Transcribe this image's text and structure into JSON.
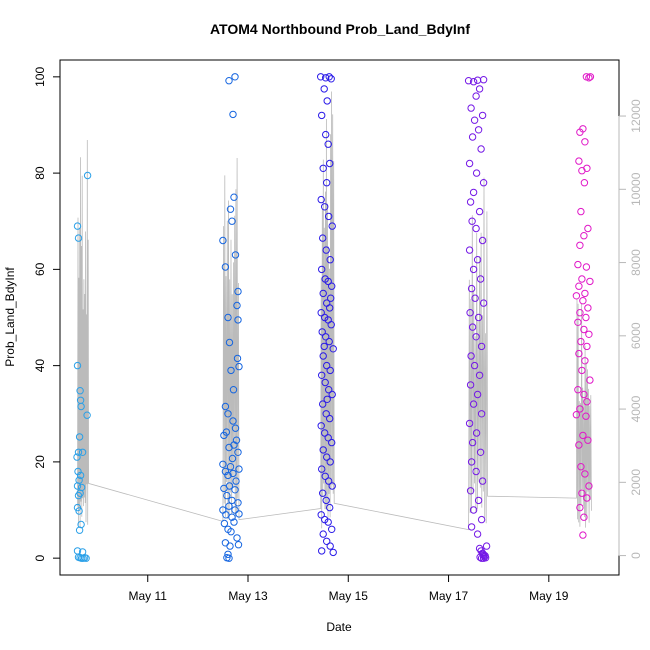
{
  "chart_data": {
    "type": "scatter",
    "title": "ATOM4 Northbound Prob_Land_BdyInf",
    "xlabel": "Date",
    "ylabel": "Prob_Land_BdyInf",
    "x_ticks": [
      "May 11",
      "May 13",
      "May 15",
      "May 17",
      "May 19"
    ],
    "x_tick_positions": [
      11,
      13,
      15,
      17,
      19
    ],
    "xlim": [
      9.25,
      20.4
    ],
    "ylim": [
      -3.5,
      103.5
    ],
    "y_ticks": [
      0,
      20,
      40,
      60,
      80,
      100
    ],
    "secondary_axis": {
      "side": "right",
      "ylim": [
        -530,
        13530
      ],
      "ticks": [
        0,
        2000,
        4000,
        6000,
        8000,
        10000,
        12000
      ],
      "color": "#b8b8b8"
    },
    "grid": false,
    "legend": "none",
    "series": [
      {
        "color": "#2aa0e8",
        "points": [
          [
            9.6,
            69
          ],
          [
            9.62,
            66.5
          ],
          [
            9.6,
            40
          ],
          [
            9.65,
            34.8
          ],
          [
            9.66,
            32.8
          ],
          [
            9.67,
            31.5
          ],
          [
            9.64,
            25.2
          ],
          [
            9.62,
            22
          ],
          [
            9.7,
            22
          ],
          [
            9.59,
            21
          ],
          [
            9.61,
            18
          ],
          [
            9.63,
            16.2
          ],
          [
            9.66,
            17.2
          ],
          [
            9.6,
            15
          ],
          [
            9.68,
            14.7
          ],
          [
            9.62,
            13
          ],
          [
            9.65,
            13.5
          ],
          [
            9.6,
            10.5
          ],
          [
            9.63,
            9.8
          ],
          [
            9.67,
            7
          ],
          [
            9.64,
            5.8
          ],
          [
            9.6,
            1.5
          ],
          [
            9.7,
            1.3
          ],
          [
            9.62,
            0.2
          ],
          [
            9.65,
            0.1
          ],
          [
            9.68,
            0
          ],
          [
            9.71,
            0
          ],
          [
            9.74,
            0.1
          ],
          [
            9.77,
            0
          ],
          [
            9.8,
            79.5
          ],
          [
            9.79,
            29.7
          ]
        ]
      },
      {
        "color": "#1565e0",
        "points": [
          [
            12.5,
            66
          ],
          [
            12.55,
            60.5
          ],
          [
            12.62,
            99.2
          ],
          [
            12.74,
            100
          ],
          [
            12.7,
            92.2
          ],
          [
            12.8,
            55.4
          ],
          [
            12.78,
            52.5
          ],
          [
            12.65,
            72.5
          ],
          [
            12.72,
            75
          ],
          [
            12.68,
            70
          ],
          [
            12.75,
            63
          ],
          [
            12.6,
            50
          ],
          [
            12.63,
            44.8
          ],
          [
            12.8,
            49.5
          ],
          [
            12.79,
            41.5
          ],
          [
            12.82,
            39.8
          ],
          [
            12.66,
            39
          ],
          [
            12.55,
            31.5
          ],
          [
            12.6,
            30
          ],
          [
            12.7,
            28.5
          ],
          [
            12.75,
            27
          ],
          [
            12.52,
            25.5
          ],
          [
            12.62,
            23
          ],
          [
            12.72,
            23.5
          ],
          [
            12.8,
            22
          ],
          [
            12.5,
            19.5
          ],
          [
            12.55,
            18
          ],
          [
            12.6,
            17.2
          ],
          [
            12.65,
            19
          ],
          [
            12.7,
            17.6
          ],
          [
            12.76,
            16
          ],
          [
            12.82,
            18.5
          ],
          [
            12.52,
            14.5
          ],
          [
            12.58,
            13
          ],
          [
            12.63,
            15
          ],
          [
            12.68,
            12
          ],
          [
            12.74,
            14.2
          ],
          [
            12.8,
            11.5
          ],
          [
            12.5,
            10
          ],
          [
            12.56,
            9
          ],
          [
            12.62,
            10.8
          ],
          [
            12.68,
            8.5
          ],
          [
            12.74,
            10
          ],
          [
            12.82,
            9.2
          ],
          [
            12.53,
            7.2
          ],
          [
            12.6,
            6
          ],
          [
            12.66,
            5.5
          ],
          [
            12.72,
            7.5
          ],
          [
            12.78,
            4.2
          ],
          [
            12.55,
            3.2
          ],
          [
            12.64,
            2.5
          ],
          [
            12.6,
            0.8
          ],
          [
            12.58,
            0.1
          ],
          [
            12.62,
            0
          ],
          [
            12.71,
            35
          ],
          [
            12.77,
            24.5
          ],
          [
            12.57,
            26.2
          ],
          [
            12.69,
            20.7
          ],
          [
            12.81,
            2.8
          ]
        ]
      },
      {
        "color": "#2a1ae8",
        "points": [
          [
            14.45,
            100
          ],
          [
            14.55,
            99.8
          ],
          [
            14.62,
            100
          ],
          [
            14.66,
            99.6
          ],
          [
            14.52,
            97.5
          ],
          [
            14.58,
            95
          ],
          [
            14.47,
            92
          ],
          [
            14.55,
            88
          ],
          [
            14.6,
            86
          ],
          [
            14.5,
            81
          ],
          [
            14.63,
            82
          ],
          [
            14.57,
            78
          ],
          [
            14.46,
            74.5
          ],
          [
            14.53,
            73
          ],
          [
            14.61,
            71
          ],
          [
            14.68,
            69
          ],
          [
            14.49,
            66.5
          ],
          [
            14.56,
            64
          ],
          [
            14.64,
            62
          ],
          [
            14.47,
            60
          ],
          [
            14.54,
            58
          ],
          [
            14.6,
            57.5
          ],
          [
            14.67,
            56.5
          ],
          [
            14.5,
            55
          ],
          [
            14.57,
            53
          ],
          [
            14.63,
            52
          ],
          [
            14.46,
            51
          ],
          [
            14.53,
            50
          ],
          [
            14.6,
            49.5
          ],
          [
            14.66,
            48.5
          ],
          [
            14.48,
            47
          ],
          [
            14.55,
            46
          ],
          [
            14.62,
            45
          ],
          [
            14.7,
            43.5
          ],
          [
            14.5,
            42
          ],
          [
            14.57,
            40
          ],
          [
            14.64,
            39
          ],
          [
            14.47,
            38
          ],
          [
            14.54,
            36.5
          ],
          [
            14.61,
            35
          ],
          [
            14.68,
            34
          ],
          [
            14.49,
            32
          ],
          [
            14.56,
            30
          ],
          [
            14.63,
            29
          ],
          [
            14.46,
            27.5
          ],
          [
            14.53,
            26
          ],
          [
            14.6,
            25
          ],
          [
            14.67,
            24
          ],
          [
            14.5,
            22.5
          ],
          [
            14.57,
            21
          ],
          [
            14.64,
            20
          ],
          [
            14.47,
            18.5
          ],
          [
            14.54,
            17
          ],
          [
            14.61,
            16
          ],
          [
            14.68,
            15
          ],
          [
            14.49,
            13.5
          ],
          [
            14.56,
            12
          ],
          [
            14.63,
            10.5
          ],
          [
            14.46,
            9
          ],
          [
            14.53,
            8
          ],
          [
            14.6,
            7.5
          ],
          [
            14.67,
            6
          ],
          [
            14.5,
            5
          ],
          [
            14.57,
            3.5
          ],
          [
            14.64,
            2.5
          ],
          [
            14.47,
            1.5
          ],
          [
            14.7,
            1.2
          ],
          [
            14.65,
            54
          ],
          [
            14.52,
            44
          ],
          [
            14.58,
            33
          ]
        ]
      },
      {
        "color": "#7418e6",
        "points": [
          [
            17.4,
            99.2
          ],
          [
            17.5,
            99
          ],
          [
            17.58,
            99.3
          ],
          [
            17.7,
            99.4
          ],
          [
            17.62,
            97.5
          ],
          [
            17.55,
            96
          ],
          [
            17.45,
            93.5
          ],
          [
            17.52,
            91
          ],
          [
            17.68,
            92
          ],
          [
            17.6,
            89
          ],
          [
            17.48,
            87.5
          ],
          [
            17.65,
            85
          ],
          [
            17.42,
            82
          ],
          [
            17.56,
            80
          ],
          [
            17.7,
            78
          ],
          [
            17.5,
            76
          ],
          [
            17.44,
            74
          ],
          [
            17.62,
            72
          ],
          [
            17.47,
            70
          ],
          [
            17.55,
            68.5
          ],
          [
            17.68,
            66
          ],
          [
            17.42,
            64
          ],
          [
            17.58,
            62
          ],
          [
            17.5,
            60
          ],
          [
            17.64,
            58
          ],
          [
            17.46,
            56
          ],
          [
            17.53,
            54
          ],
          [
            17.7,
            53
          ],
          [
            17.43,
            51
          ],
          [
            17.6,
            50
          ],
          [
            17.48,
            48
          ],
          [
            17.55,
            46
          ],
          [
            17.66,
            44
          ],
          [
            17.45,
            42
          ],
          [
            17.52,
            40
          ],
          [
            17.62,
            38
          ],
          [
            17.44,
            36
          ],
          [
            17.58,
            34
          ],
          [
            17.5,
            32
          ],
          [
            17.66,
            30
          ],
          [
            17.42,
            28
          ],
          [
            17.56,
            26
          ],
          [
            17.48,
            24
          ],
          [
            17.64,
            22
          ],
          [
            17.46,
            20
          ],
          [
            17.55,
            18
          ],
          [
            17.68,
            16
          ],
          [
            17.44,
            14
          ],
          [
            17.6,
            12
          ],
          [
            17.5,
            10
          ],
          [
            17.66,
            8
          ],
          [
            17.46,
            6.5
          ],
          [
            17.58,
            5
          ],
          [
            17.62,
            2
          ],
          [
            17.65,
            1.5
          ],
          [
            17.68,
            1
          ],
          [
            17.7,
            0.6
          ],
          [
            17.72,
            0.3
          ],
          [
            17.74,
            0.1
          ],
          [
            17.66,
            0
          ],
          [
            17.7,
            0
          ],
          [
            17.73,
            0.5
          ],
          [
            17.76,
            2.5
          ],
          [
            17.63,
            0.2
          ],
          [
            17.69,
            0.8
          ]
        ]
      },
      {
        "color": "#e018c8",
        "points": [
          [
            19.75,
            100
          ],
          [
            19.8,
            99.8
          ],
          [
            19.83,
            100
          ],
          [
            19.62,
            88.5
          ],
          [
            19.68,
            89.2
          ],
          [
            19.72,
            86.5
          ],
          [
            19.6,
            82.5
          ],
          [
            19.76,
            81
          ],
          [
            19.66,
            80.5
          ],
          [
            19.71,
            78
          ],
          [
            19.64,
            72
          ],
          [
            19.78,
            68.5
          ],
          [
            19.7,
            67
          ],
          [
            19.62,
            65
          ],
          [
            19.58,
            61
          ],
          [
            19.75,
            60.5
          ],
          [
            19.66,
            58
          ],
          [
            19.82,
            57.5
          ],
          [
            19.6,
            56.5
          ],
          [
            19.72,
            55
          ],
          [
            19.55,
            54.5
          ],
          [
            19.68,
            53.5
          ],
          [
            19.78,
            52
          ],
          [
            19.62,
            51
          ],
          [
            19.74,
            50
          ],
          [
            19.58,
            49
          ],
          [
            19.7,
            47.5
          ],
          [
            19.8,
            46.5
          ],
          [
            19.64,
            45
          ],
          [
            19.76,
            44
          ],
          [
            19.6,
            42.5
          ],
          [
            19.72,
            41
          ],
          [
            19.66,
            39
          ],
          [
            19.82,
            37
          ],
          [
            19.58,
            35
          ],
          [
            19.7,
            34
          ],
          [
            19.76,
            32.5
          ],
          [
            19.62,
            31
          ],
          [
            19.74,
            29.5
          ],
          [
            19.68,
            25.5
          ],
          [
            19.6,
            23.5
          ],
          [
            19.78,
            24.5
          ],
          [
            19.64,
            19
          ],
          [
            19.72,
            17.5
          ],
          [
            19.8,
            15
          ],
          [
            19.66,
            13.5
          ],
          [
            19.76,
            12.5
          ],
          [
            19.62,
            10.5
          ],
          [
            19.7,
            8.5
          ],
          [
            19.68,
            4.8
          ],
          [
            19.55,
            29.8
          ]
        ]
      }
    ]
  }
}
